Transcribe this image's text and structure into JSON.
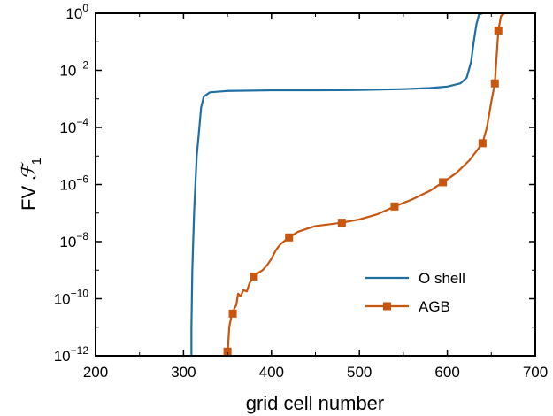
{
  "chart_data": {
    "type": "line",
    "xlabel": "grid cell number",
    "ylabel": {
      "prefix": "FV ",
      "symbol": "ℱ",
      "sub": "1"
    },
    "xlim": [
      200,
      700
    ],
    "ylim": [
      1e-12,
      1
    ],
    "yscale": "log",
    "grid": false,
    "legend_position": "lower-right",
    "xticks": [
      200,
      300,
      400,
      500,
      600,
      700
    ],
    "xtick_labels": [
      "200",
      "300",
      "400",
      "500",
      "600",
      "700"
    ],
    "yticks": [
      {
        "value": 1,
        "base": "10",
        "exp": "0"
      },
      {
        "value": 0.01,
        "base": "10",
        "exp": "−2"
      },
      {
        "value": 0.0001,
        "base": "10",
        "exp": "−4"
      },
      {
        "value": 1e-06,
        "base": "10",
        "exp": "−6"
      },
      {
        "value": 1e-08,
        "base": "10",
        "exp": "−8"
      },
      {
        "value": 1e-10,
        "base": "10",
        "exp": "−10"
      },
      {
        "value": 1e-12,
        "base": "10",
        "exp": "−12"
      }
    ],
    "series": [
      {
        "name": "O shell",
        "color": "#1f6fa3",
        "marker": "none",
        "points": [
          [
            309,
            1e-12
          ],
          [
            309,
            1e-11
          ],
          [
            310,
            1e-09
          ],
          [
            312,
            1e-07
          ],
          [
            315,
            1e-05
          ],
          [
            318,
            0.0001
          ],
          [
            320,
            0.0005
          ],
          [
            323,
            0.0012
          ],
          [
            330,
            0.0017
          ],
          [
            350,
            0.0019
          ],
          [
            400,
            0.002
          ],
          [
            450,
            0.002
          ],
          [
            500,
            0.00205
          ],
          [
            550,
            0.0022
          ],
          [
            580,
            0.0024
          ],
          [
            600,
            0.0027
          ],
          [
            615,
            0.0035
          ],
          [
            622,
            0.0055
          ],
          [
            627,
            0.02
          ],
          [
            630,
            0.1
          ],
          [
            633,
            0.4
          ],
          [
            636,
            0.9
          ],
          [
            640,
            1
          ]
        ]
      },
      {
        "name": "AGB",
        "color": "#c8560f",
        "marker": "square",
        "points": [
          [
            350,
            1e-12
          ],
          [
            352,
            1e-11
          ],
          [
            355,
            3e-11
          ],
          [
            360,
            6e-11
          ],
          [
            362,
            1.5e-10
          ],
          [
            365,
            1.2e-10
          ],
          [
            368,
            2e-10
          ],
          [
            372,
            1.8e-10
          ],
          [
            375,
            3.5e-10
          ],
          [
            380,
            6e-10
          ],
          [
            385,
            8e-10
          ],
          [
            390,
            1e-09
          ],
          [
            395,
            1.5e-09
          ],
          [
            400,
            2.5e-09
          ],
          [
            405,
            5e-09
          ],
          [
            410,
            8e-09
          ],
          [
            420,
            1.4e-08
          ],
          [
            430,
            2.2e-08
          ],
          [
            440,
            2.8e-08
          ],
          [
            450,
            3.5e-08
          ],
          [
            465,
            4e-08
          ],
          [
            480,
            4.6e-08
          ],
          [
            500,
            6e-08
          ],
          [
            520,
            9e-08
          ],
          [
            540,
            1.7e-07
          ],
          [
            560,
            3e-07
          ],
          [
            580,
            6e-07
          ],
          [
            595,
            1.2e-06
          ],
          [
            610,
            2.5e-06
          ],
          [
            625,
            7e-06
          ],
          [
            640,
            2.8e-05
          ],
          [
            645,
            0.0001
          ],
          [
            650,
            0.0008
          ],
          [
            654,
            0.0035
          ],
          [
            656,
            0.03
          ],
          [
            658,
            0.25
          ],
          [
            661,
            0.8
          ],
          [
            665,
            1
          ]
        ],
        "marker_points": [
          [
            350,
            1.4e-12
          ],
          [
            356,
            3e-11
          ],
          [
            380,
            6e-10
          ],
          [
            420,
            1.4e-08
          ],
          [
            480,
            4.6e-08
          ],
          [
            540,
            1.7e-07
          ],
          [
            595,
            1.2e-06
          ],
          [
            640,
            2.8e-05
          ],
          [
            654,
            0.0035
          ],
          [
            658,
            0.25
          ]
        ]
      }
    ]
  }
}
